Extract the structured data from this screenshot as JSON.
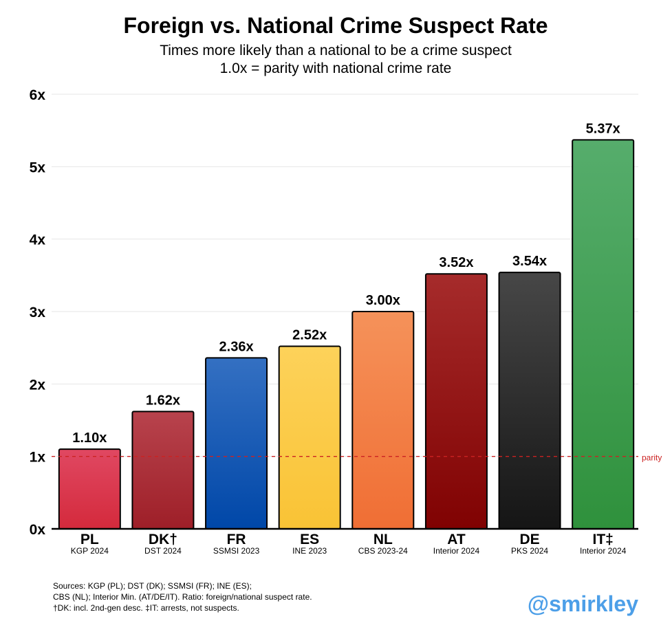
{
  "chart_data": {
    "type": "bar",
    "title": "Foreign vs. National Crime Suspect Rate",
    "subtitle": [
      "Times more likely than a national to be a crime suspect",
      "1.0x = parity with national crime rate"
    ],
    "categories": [
      "PL",
      "DK†",
      "FR",
      "ES",
      "NL",
      "AT",
      "DE",
      "IT‡"
    ],
    "sources": [
      "KGP 2024",
      "DST 2024",
      "SSMSI 2023",
      "INE 2023",
      "CBS 2023-24",
      "Interior 2024",
      "PKS 2024",
      "Interior 2024"
    ],
    "values": [
      1.1,
      1.62,
      2.36,
      2.52,
      3.0,
      3.52,
      3.54,
      5.37
    ],
    "value_labels": [
      "1.10x",
      "1.62x",
      "2.36x",
      "2.52x",
      "3.00x",
      "3.52x",
      "3.54x",
      "5.37x"
    ],
    "bar_colors": [
      [
        "#e04862",
        "#d42a3c"
      ],
      [
        "#b8434d",
        "#9e1f28"
      ],
      [
        "#3470c2",
        "#0047a8"
      ],
      [
        "#fdd25a",
        "#f9c335"
      ],
      [
        "#f5925a",
        "#f06e34"
      ],
      [
        "#a62b2b",
        "#800202"
      ],
      [
        "#474747",
        "#151515"
      ],
      [
        "#56ad6c",
        "#2f913c"
      ]
    ],
    "ylim": [
      0,
      6
    ],
    "yticks": [
      0,
      1,
      2,
      3,
      4,
      5,
      6
    ],
    "ytick_labels": [
      "0x",
      "1x",
      "2x",
      "3x",
      "4x",
      "5x",
      "6x"
    ],
    "grid": true,
    "reference_line": {
      "value": 1.0,
      "label": "parity",
      "color": "#cc2222"
    },
    "xlabel": "",
    "ylabel": ""
  },
  "footnotes": [
    "Sources: KGP (PL); DST (DK); SSMSI (FR); INE (ES);",
    "CBS (NL); Interior Min. (AT/DE/IT). Ratio: foreign/national suspect rate.",
    "†DK: incl. 2nd-gen desc. ‡IT: arrests, not suspects."
  ],
  "handle": "@smirkley",
  "colors": {
    "handle": "#4d9fe8",
    "grid": "#e6e6e6",
    "axis": "#000000"
  }
}
